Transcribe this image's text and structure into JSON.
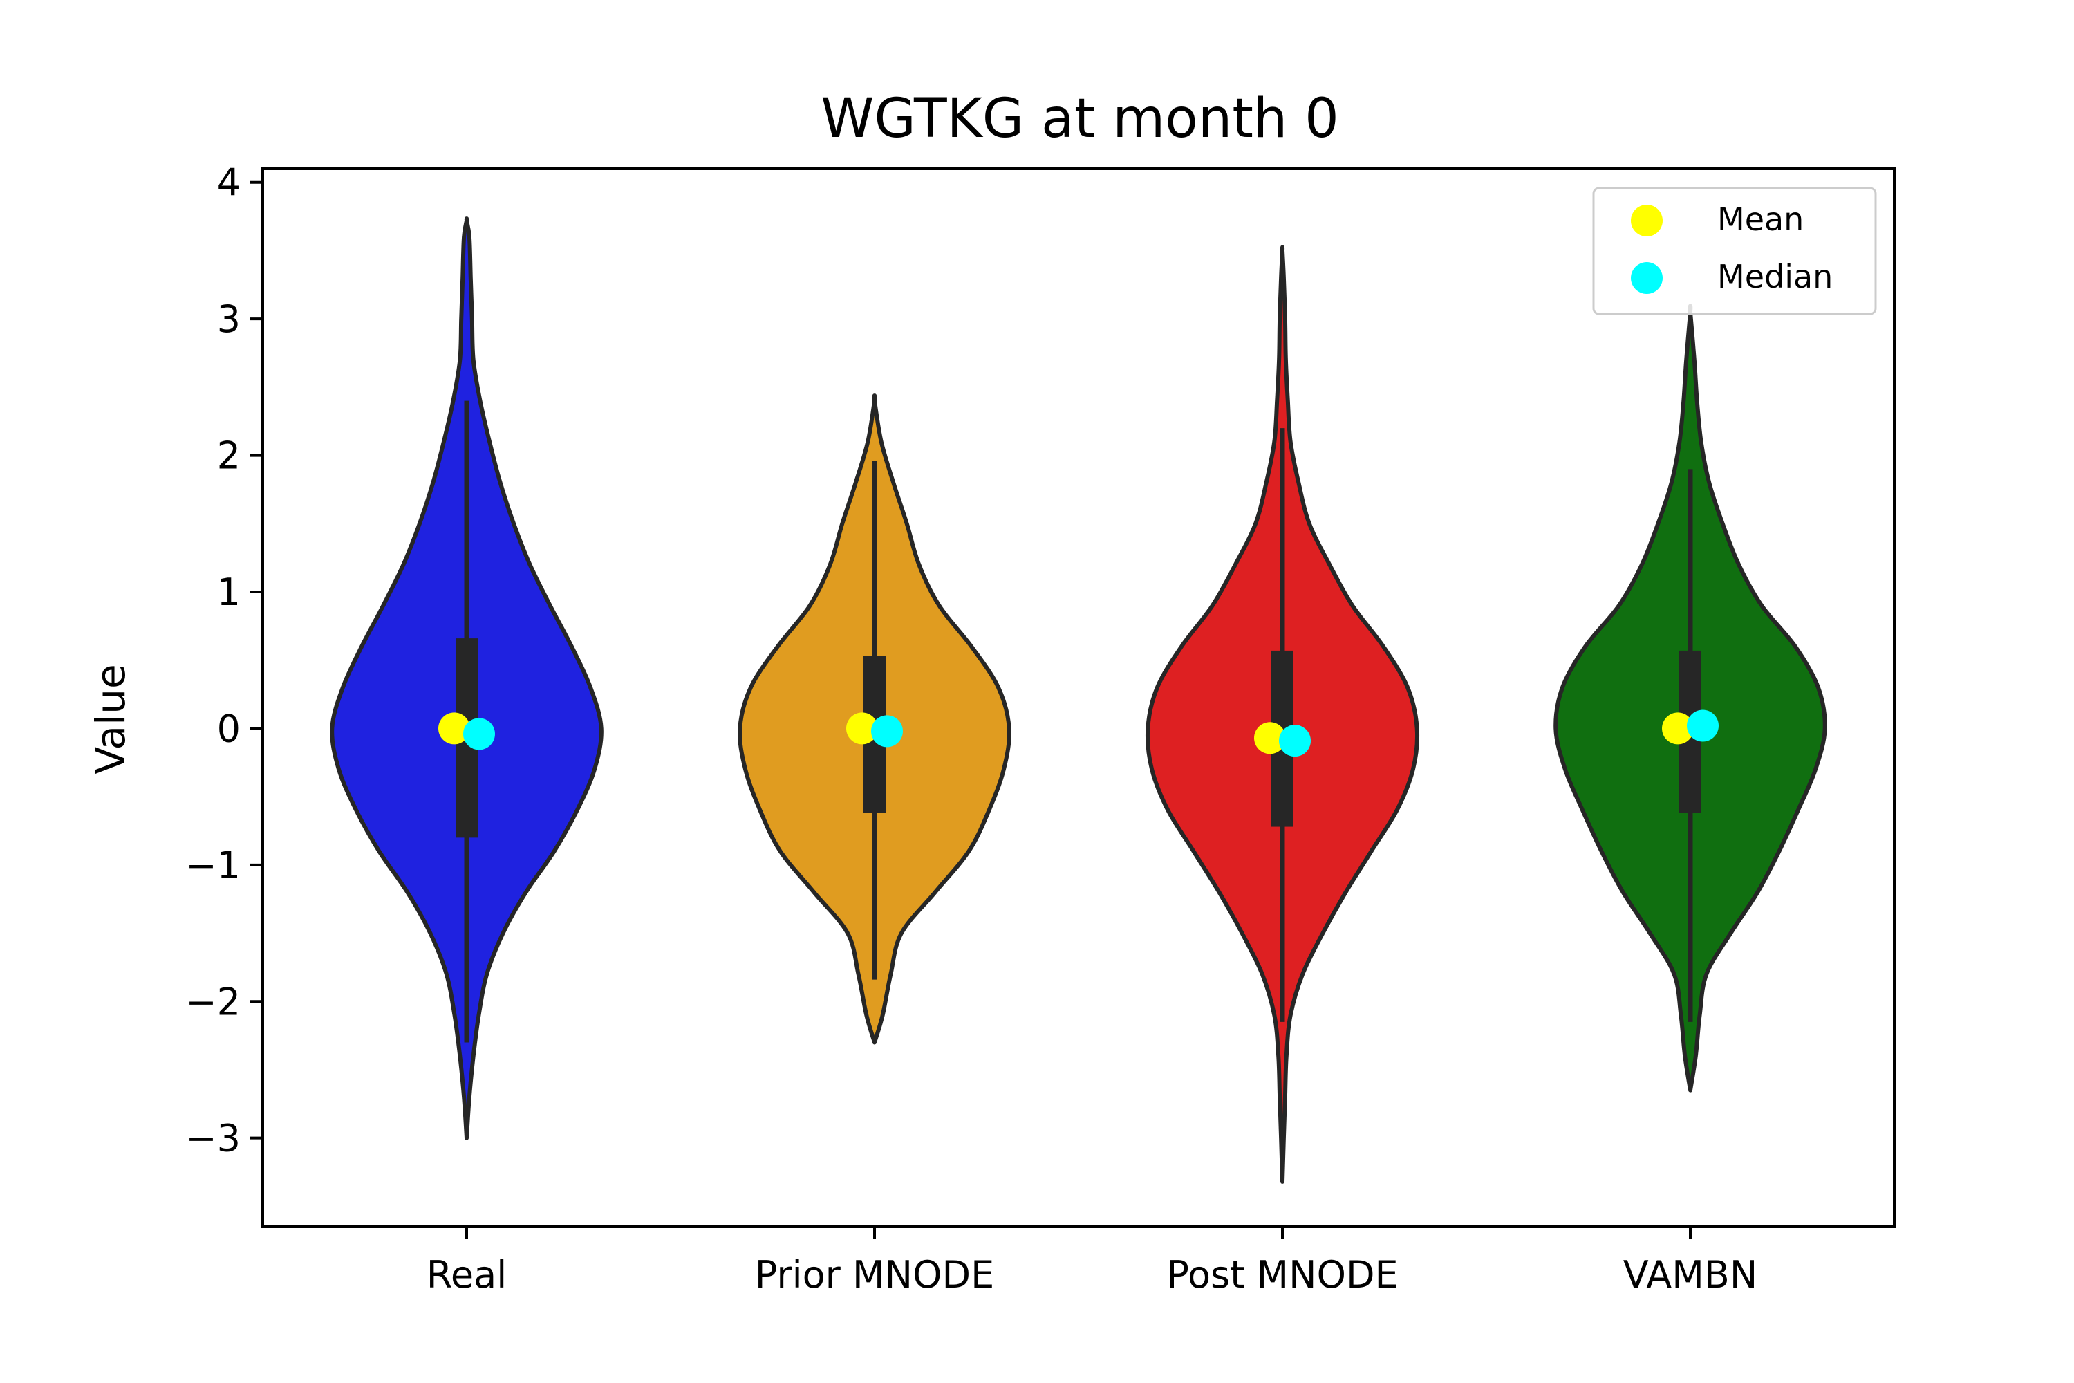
{
  "chart_data": {
    "type": "violin",
    "title": "WGTKG at month 0",
    "xlabel": "",
    "ylabel": "Value",
    "ylim": [
      -3.65,
      4.1
    ],
    "yticks": [
      -3,
      -2,
      -1,
      0,
      1,
      2,
      3,
      4
    ],
    "ytick_labels": [
      "−3",
      "−2",
      "−1",
      "0",
      "1",
      "2",
      "3",
      "4"
    ],
    "categories": [
      "Real",
      "Prior MNODE",
      "Post MNODE",
      "VAMBN"
    ],
    "grid": false,
    "legend": {
      "placement": "top-right",
      "entries": [
        {
          "label": "Mean",
          "color": "#ffff00"
        },
        {
          "label": "Median",
          "color": "#00ffff"
        }
      ]
    },
    "series": [
      {
        "category": "Real",
        "color": "#1f22e0",
        "mean": 0.0,
        "median": -0.04,
        "q1": -0.8,
        "q3": 0.66,
        "whisker_low": -2.3,
        "whisker_high": 2.4,
        "min": -3.0,
        "max": 3.72,
        "density_profile": [
          [
            -3.0,
            0.0
          ],
          [
            -2.7,
            0.02
          ],
          [
            -2.4,
            0.05
          ],
          [
            -2.1,
            0.09
          ],
          [
            -1.8,
            0.15
          ],
          [
            -1.5,
            0.27
          ],
          [
            -1.2,
            0.44
          ],
          [
            -0.9,
            0.65
          ],
          [
            -0.6,
            0.82
          ],
          [
            -0.3,
            0.95
          ],
          [
            0.0,
            1.0
          ],
          [
            0.3,
            0.92
          ],
          [
            0.6,
            0.78
          ],
          [
            0.9,
            0.62
          ],
          [
            1.2,
            0.47
          ],
          [
            1.5,
            0.35
          ],
          [
            1.8,
            0.25
          ],
          [
            2.1,
            0.17
          ],
          [
            2.4,
            0.1
          ],
          [
            2.7,
            0.05
          ],
          [
            3.0,
            0.04
          ],
          [
            3.3,
            0.03
          ],
          [
            3.6,
            0.02
          ],
          [
            3.72,
            0.0
          ]
        ]
      },
      {
        "category": "Prior MNODE",
        "color": "#e09c20",
        "mean": 0.0,
        "median": -0.02,
        "q1": -0.62,
        "q3": 0.53,
        "whisker_low": -1.84,
        "whisker_high": 1.96,
        "min": -2.3,
        "max": 2.4,
        "density_profile": [
          [
            -2.3,
            0.0
          ],
          [
            -2.1,
            0.06
          ],
          [
            -1.8,
            0.12
          ],
          [
            -1.5,
            0.2
          ],
          [
            -1.2,
            0.45
          ],
          [
            -0.9,
            0.7
          ],
          [
            -0.6,
            0.85
          ],
          [
            -0.3,
            0.96
          ],
          [
            0.0,
            1.0
          ],
          [
            0.3,
            0.92
          ],
          [
            0.6,
            0.72
          ],
          [
            0.9,
            0.48
          ],
          [
            1.2,
            0.33
          ],
          [
            1.5,
            0.24
          ],
          [
            1.8,
            0.14
          ],
          [
            2.1,
            0.05
          ],
          [
            2.4,
            0.0
          ]
        ]
      },
      {
        "category": "Post MNODE",
        "color": "#de2022",
        "mean": -0.07,
        "median": -0.09,
        "q1": -0.72,
        "q3": 0.57,
        "whisker_low": -2.15,
        "whisker_high": 2.2,
        "min": -3.32,
        "max": 3.5,
        "density_profile": [
          [
            -3.32,
            0.0
          ],
          [
            -3.0,
            0.01
          ],
          [
            -2.7,
            0.02
          ],
          [
            -2.4,
            0.03
          ],
          [
            -2.1,
            0.06
          ],
          [
            -1.8,
            0.15
          ],
          [
            -1.5,
            0.3
          ],
          [
            -1.2,
            0.47
          ],
          [
            -0.9,
            0.66
          ],
          [
            -0.6,
            0.85
          ],
          [
            -0.3,
            0.97
          ],
          [
            0.0,
            1.0
          ],
          [
            0.3,
            0.93
          ],
          [
            0.6,
            0.75
          ],
          [
            0.9,
            0.52
          ],
          [
            1.2,
            0.35
          ],
          [
            1.5,
            0.2
          ],
          [
            1.8,
            0.12
          ],
          [
            2.1,
            0.06
          ],
          [
            2.4,
            0.04
          ],
          [
            2.7,
            0.025
          ],
          [
            3.0,
            0.02
          ],
          [
            3.3,
            0.01
          ],
          [
            3.5,
            0.0
          ]
        ]
      },
      {
        "category": "VAMBN",
        "color": "#106f10",
        "mean": 0.0,
        "median": 0.02,
        "q1": -0.62,
        "q3": 0.57,
        "whisker_low": -2.15,
        "whisker_high": 1.9,
        "min": -2.65,
        "max": 3.05,
        "density_profile": [
          [
            -2.65,
            0.0
          ],
          [
            -2.4,
            0.04
          ],
          [
            -2.1,
            0.07
          ],
          [
            -1.8,
            0.12
          ],
          [
            -1.5,
            0.3
          ],
          [
            -1.2,
            0.5
          ],
          [
            -0.9,
            0.66
          ],
          [
            -0.6,
            0.8
          ],
          [
            -0.3,
            0.93
          ],
          [
            0.0,
            1.0
          ],
          [
            0.3,
            0.95
          ],
          [
            0.6,
            0.78
          ],
          [
            0.9,
            0.53
          ],
          [
            1.2,
            0.36
          ],
          [
            1.5,
            0.24
          ],
          [
            1.8,
            0.14
          ],
          [
            2.1,
            0.08
          ],
          [
            2.4,
            0.05
          ],
          [
            2.7,
            0.03
          ],
          [
            3.05,
            0.0
          ]
        ]
      }
    ]
  }
}
